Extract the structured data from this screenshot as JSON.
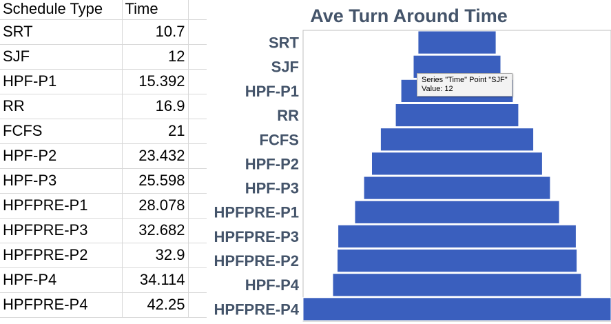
{
  "sheet": {
    "header": {
      "col1": "Schedule Type",
      "col2": "Time"
    },
    "rows": [
      {
        "type": "SRT",
        "time": "10.7"
      },
      {
        "type": "SJF",
        "time": "12"
      },
      {
        "type": "HPF-P1",
        "time": "15.392"
      },
      {
        "type": "RR",
        "time": "16.9"
      },
      {
        "type": "FCFS",
        "time": "21"
      },
      {
        "type": "HPF-P2",
        "time": "23.432"
      },
      {
        "type": "HPF-P3",
        "time": "25.598"
      },
      {
        "type": "HPFPRE-P1",
        "time": "28.078"
      },
      {
        "type": "HPFPRE-P3",
        "time": "32.682"
      },
      {
        "type": "HPFPRE-P2",
        "time": "32.9"
      },
      {
        "type": "HPF-P4",
        "time": "34.114"
      },
      {
        "type": "HPFPRE-P4",
        "time": "42.25"
      }
    ]
  },
  "chart_data": {
    "type": "bar",
    "orientation": "horizontal-funnel",
    "title": "Ave Turn Around Time",
    "categories": [
      "SRT",
      "SJF",
      "HPF-P1",
      "RR",
      "FCFS",
      "HPF-P2",
      "HPF-P3",
      "HPFPRE-P1",
      "HPFPRE-P3",
      "HPFPRE-P2",
      "HPF-P4",
      "HPFPRE-P4"
    ],
    "series": [
      {
        "name": "Time",
        "values": [
          10.7,
          12,
          15.392,
          16.9,
          21,
          23.432,
          25.598,
          28.078,
          32.682,
          32.9,
          34.114,
          42.25
        ]
      }
    ],
    "colors": {
      "bar": "#3a5fbe",
      "bar_border": "#ffffff",
      "label": "#44546a",
      "plot_border": "#bfbfbf",
      "title": "#44546a"
    },
    "tooltip": {
      "line1": "Series \"Time\" Point \"SJF\"",
      "line2": "Value: 12"
    },
    "grid": false,
    "legend": "none"
  }
}
